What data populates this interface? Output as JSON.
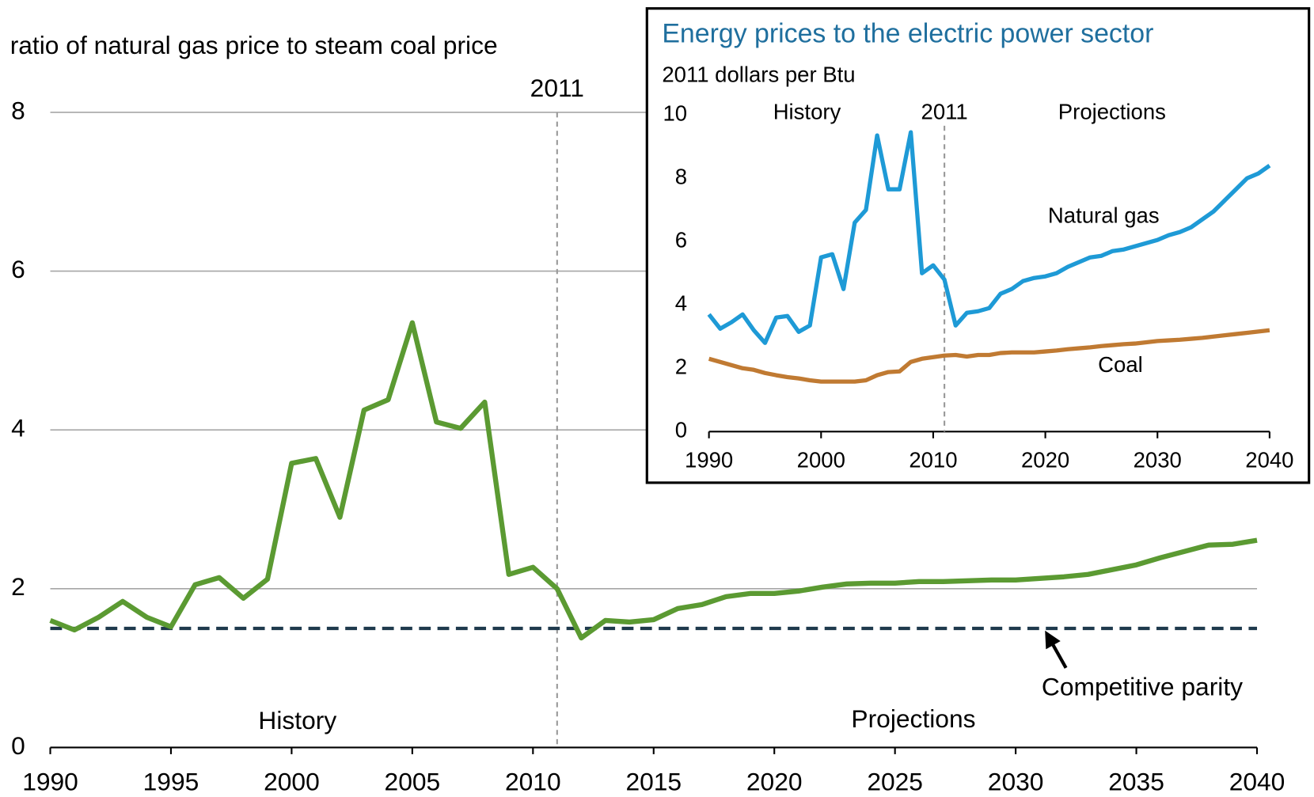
{
  "chart_data": [
    {
      "type": "line",
      "y_label": "ratio of natural gas price to steam coal price",
      "x": [
        1990,
        1991,
        1992,
        1993,
        1994,
        1995,
        1996,
        1997,
        1998,
        1999,
        2000,
        2001,
        2002,
        2003,
        2004,
        2005,
        2006,
        2007,
        2008,
        2009,
        2010,
        2011,
        2012,
        2013,
        2014,
        2015,
        2016,
        2017,
        2018,
        2019,
        2020,
        2021,
        2022,
        2023,
        2024,
        2025,
        2026,
        2027,
        2028,
        2029,
        2030,
        2031,
        2032,
        2033,
        2034,
        2035,
        2036,
        2037,
        2038,
        2039,
        2040
      ],
      "series": [
        {
          "color": "#5b9a32",
          "values": [
            1.6,
            1.48,
            1.64,
            1.84,
            1.64,
            1.52,
            2.05,
            2.14,
            1.88,
            2.12,
            3.58,
            3.64,
            2.9,
            4.25,
            4.38,
            5.35,
            4.1,
            4.02,
            4.35,
            2.18,
            2.27,
            2.0,
            1.38,
            1.6,
            1.58,
            1.61,
            1.75,
            1.8,
            1.9,
            1.94,
            1.94,
            1.97,
            2.02,
            2.06,
            2.07,
            2.07,
            2.09,
            2.09,
            2.1,
            2.11,
            2.11,
            2.13,
            2.15,
            2.18,
            2.24,
            2.3,
            2.39,
            2.47,
            2.55,
            2.56,
            2.61
          ]
        }
      ],
      "xlim": [
        1990,
        2040
      ],
      "xticks": [
        1990,
        1995,
        2000,
        2005,
        2010,
        2015,
        2020,
        2025,
        2030,
        2035,
        2040
      ],
      "ylim": [
        0,
        8
      ],
      "yticks": [
        0,
        2,
        4,
        6,
        8
      ],
      "grid": true,
      "reference_line": {
        "value": 1.5,
        "label": "Competitive parity",
        "color": "#1f3a4d"
      },
      "vline": {
        "x": 2011,
        "label": "2011"
      },
      "region_labels": [
        "History",
        "Projections"
      ]
    },
    {
      "type": "line",
      "title": "Energy prices to the electric power sector",
      "y_label": "2011 dollars per Btu",
      "x": [
        1990,
        1991,
        1992,
        1993,
        1994,
        1995,
        1996,
        1997,
        1998,
        1999,
        2000,
        2001,
        2002,
        2003,
        2004,
        2005,
        2006,
        2007,
        2008,
        2009,
        2010,
        2011,
        2012,
        2013,
        2014,
        2015,
        2016,
        2017,
        2018,
        2019,
        2020,
        2021,
        2022,
        2023,
        2024,
        2025,
        2026,
        2027,
        2028,
        2029,
        2030,
        2031,
        2032,
        2033,
        2034,
        2035,
        2036,
        2037,
        2038,
        2039,
        2040
      ],
      "series": [
        {
          "name": "Natural gas",
          "color": "#1e9ad6",
          "values": [
            3.7,
            3.25,
            3.45,
            3.7,
            3.2,
            2.8,
            3.6,
            3.65,
            3.15,
            3.35,
            5.5,
            5.6,
            4.5,
            6.6,
            7.0,
            9.35,
            7.65,
            7.65,
            9.45,
            5.0,
            5.25,
            4.8,
            3.35,
            3.75,
            3.8,
            3.9,
            4.35,
            4.5,
            4.75,
            4.85,
            4.9,
            5.0,
            5.2,
            5.35,
            5.5,
            5.55,
            5.7,
            5.75,
            5.85,
            5.95,
            6.05,
            6.2,
            6.3,
            6.45,
            6.7,
            6.95,
            7.3,
            7.65,
            8.0,
            8.15,
            8.4
          ]
        },
        {
          "name": "Coal",
          "color": "#c07a32",
          "values": [
            2.3,
            2.2,
            2.1,
            2.0,
            1.95,
            1.85,
            1.78,
            1.72,
            1.68,
            1.62,
            1.58,
            1.58,
            1.58,
            1.58,
            1.62,
            1.78,
            1.88,
            1.9,
            2.2,
            2.3,
            2.35,
            2.4,
            2.42,
            2.37,
            2.42,
            2.42,
            2.48,
            2.5,
            2.5,
            2.5,
            2.53,
            2.56,
            2.6,
            2.63,
            2.66,
            2.7,
            2.73,
            2.76,
            2.78,
            2.82,
            2.86,
            2.88,
            2.9,
            2.93,
            2.96,
            3.0,
            3.04,
            3.08,
            3.12,
            3.16,
            3.2
          ]
        }
      ],
      "xlim": [
        1990,
        2040
      ],
      "xticks": [
        1990,
        2000,
        2010,
        2020,
        2030,
        2040
      ],
      "ylim": [
        0,
        10
      ],
      "yticks": [
        0,
        2,
        4,
        6,
        8,
        10
      ],
      "grid": false,
      "vline": {
        "x": 2011,
        "label": "2011"
      },
      "region_labels": [
        "History",
        "Projections"
      ]
    }
  ]
}
